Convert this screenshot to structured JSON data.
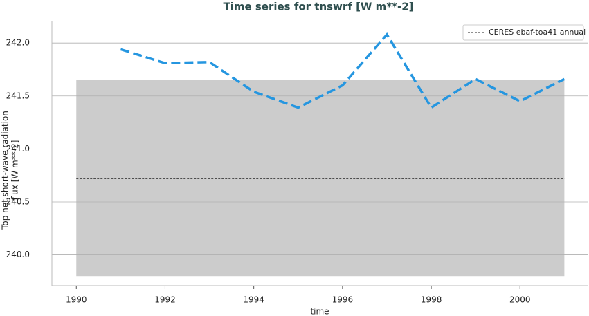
{
  "chart_data": {
    "type": "line",
    "title": "Time series for tnswrf [W m**-2]",
    "xlabel": "time",
    "ylabel": [
      "Top net short-wave radiation",
      "flux [W m**-2]"
    ],
    "x": [
      1991,
      1992,
      1993,
      1994,
      1995,
      1996,
      1997,
      1998,
      1999,
      2000,
      2001
    ],
    "series": [
      {
        "color": "#2596e0",
        "values": [
          241.94,
          241.81,
          241.82,
          241.54,
          241.39,
          241.6,
          242.08,
          241.39,
          241.66,
          241.45,
          241.66
        ]
      }
    ],
    "reference_line": {
      "name": "CERES ebaf-toa41 annual",
      "color": "#222222",
      "value": 240.72,
      "x": [
        1990,
        2001
      ]
    },
    "band": {
      "color": "#cccccc",
      "x": [
        1990,
        2001
      ],
      "y": [
        239.8,
        241.65
      ]
    },
    "xlim": [
      1989.45,
      2001.54
    ],
    "ylim": [
      239.71,
      242.21
    ],
    "xticks": [
      1990,
      1992,
      1994,
      1996,
      1998,
      2000
    ],
    "yticks": [
      {
        "value": 240,
        "label": "240.0"
      },
      240.5,
      {
        "value": 241,
        "label": "241.0"
      },
      241.5,
      {
        "value": 242,
        "label": "242.0"
      }
    ],
    "grid": true,
    "legend": "upper right"
  }
}
